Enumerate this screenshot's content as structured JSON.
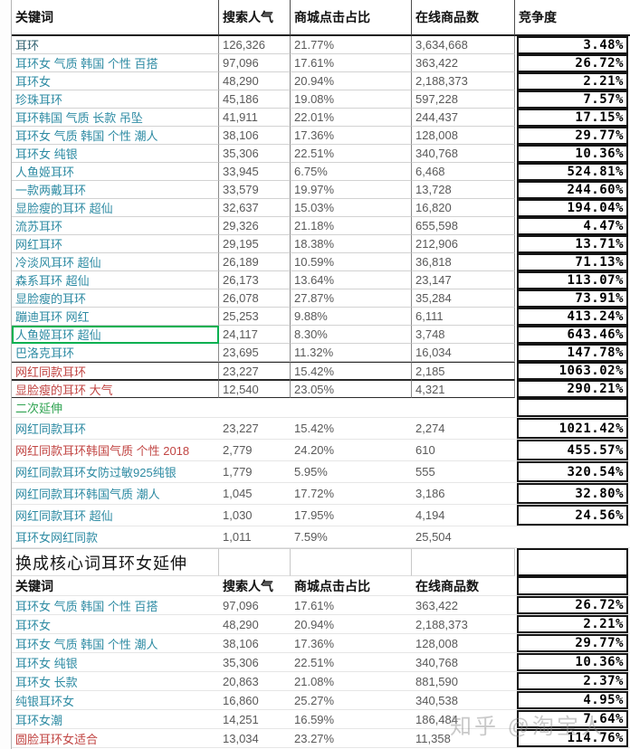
{
  "watermark": "知乎 @淘宝人",
  "colors": {
    "keyword_teal": "#2e8ba3",
    "keyword_red": "#c14543",
    "keyword_green": "#2fa351",
    "number_gray": "#595959",
    "competition_black": "#000000",
    "green_highlight_border": "#00b050"
  },
  "headers": [
    "关键词",
    "搜索人气",
    "商城点击占比",
    "在线商品数",
    "竞争度"
  ],
  "headers2": [
    "关键词",
    "搜索人气",
    "商城点击占比",
    "在线商品数",
    ""
  ],
  "section2_label": "二次延伸",
  "section3_title": "换成核心词耳环女延伸",
  "rows": [
    {
      "type": "header"
    },
    {
      "type": "data",
      "sec": 1,
      "kw": "耳环",
      "c": "d",
      "s": "126,326",
      "m": "21.77%",
      "o": "3,634,668",
      "p": "3.48%"
    },
    {
      "type": "data",
      "sec": 1,
      "kw": "耳环女 气质 韩国 个性 百搭",
      "c": "t",
      "s": "97,096",
      "m": "17.61%",
      "o": "363,422",
      "p": "26.72%"
    },
    {
      "type": "data",
      "sec": 1,
      "kw": "耳环女",
      "c": "t",
      "s": "48,290",
      "m": "20.94%",
      "o": "2,188,373",
      "p": "2.21%"
    },
    {
      "type": "data",
      "sec": 1,
      "kw": "珍珠耳环",
      "c": "t",
      "s": "45,186",
      "m": "19.08%",
      "o": "597,228",
      "p": "7.57%"
    },
    {
      "type": "data",
      "sec": 1,
      "kw": "耳环韩国 气质 长款 吊坠",
      "c": "t",
      "s": "41,911",
      "m": "22.01%",
      "o": "244,437",
      "p": "17.15%"
    },
    {
      "type": "data",
      "sec": 1,
      "kw": "耳环女 气质 韩国 个性 潮人",
      "c": "t",
      "s": "38,106",
      "m": "17.36%",
      "o": "128,008",
      "p": "29.77%"
    },
    {
      "type": "data",
      "sec": 1,
      "kw": "耳环女 纯银",
      "c": "t",
      "s": "35,306",
      "m": "22.51%",
      "o": "340,768",
      "p": "10.36%"
    },
    {
      "type": "data",
      "sec": 1,
      "kw": "人鱼姬耳环",
      "c": "t",
      "s": "33,945",
      "m": "6.75%",
      "o": "6,468",
      "p": "524.81%"
    },
    {
      "type": "data",
      "sec": 1,
      "kw": "一款两戴耳环",
      "c": "t",
      "s": "33,579",
      "m": "19.97%",
      "o": "13,728",
      "p": "244.60%"
    },
    {
      "type": "data",
      "sec": 1,
      "kw": "显脸瘦的耳环 超仙",
      "c": "t",
      "s": "32,637",
      "m": "15.03%",
      "o": "16,820",
      "p": "194.04%"
    },
    {
      "type": "data",
      "sec": 1,
      "kw": "流苏耳环",
      "c": "t",
      "s": "29,326",
      "m": "21.18%",
      "o": "655,598",
      "p": "4.47%"
    },
    {
      "type": "data",
      "sec": 1,
      "kw": "网红耳环",
      "c": "t",
      "s": "29,195",
      "m": "18.38%",
      "o": "212,906",
      "p": "13.71%"
    },
    {
      "type": "data",
      "sec": 1,
      "kw": "冷淡风耳环 超仙",
      "c": "t",
      "s": "26,189",
      "m": "10.59%",
      "o": "36,818",
      "p": "71.13%"
    },
    {
      "type": "data",
      "sec": 1,
      "kw": "森系耳环 超仙",
      "c": "t",
      "s": "26,173",
      "m": "13.64%",
      "o": "23,147",
      "p": "113.07%"
    },
    {
      "type": "data",
      "sec": 1,
      "kw": "显脸瘦的耳环",
      "c": "t",
      "s": "26,078",
      "m": "27.87%",
      "o": "35,284",
      "p": "73.91%"
    },
    {
      "type": "data",
      "sec": 1,
      "kw": "蹦迪耳环 网红",
      "c": "t",
      "s": "25,253",
      "m": "9.88%",
      "o": "6,111",
      "p": "413.24%"
    },
    {
      "type": "data",
      "sec": 1,
      "kw": "人鱼姬耳环 超仙",
      "c": "t",
      "green_box": true,
      "s": "24,117",
      "m": "8.30%",
      "o": "3,748",
      "p": "643.46%"
    },
    {
      "type": "data",
      "sec": 1,
      "kw": "巴洛克耳环",
      "c": "t",
      "s": "23,695",
      "m": "11.32%",
      "o": "16,034",
      "p": "147.78%"
    },
    {
      "type": "data",
      "sec": 1,
      "kw": "网红同款耳环",
      "c": "r",
      "heavy": true,
      "s": "23,227",
      "m": "15.42%",
      "o": "2,185",
      "p": "1063.02%"
    },
    {
      "type": "data",
      "sec": 1,
      "kw": "显脸瘦的耳环 大气",
      "c": "r",
      "heavy": true,
      "s": "12,540",
      "m": "23.05%",
      "o": "4,321",
      "p": "290.21%"
    },
    {
      "type": "section",
      "kw": "二次延伸",
      "c": "g",
      "pbox": true
    },
    {
      "type": "data",
      "sec": 2,
      "kw": "网红同款耳环",
      "c": "t",
      "s": "23,227",
      "m": "15.42%",
      "o": "2,274",
      "p": "1021.42%"
    },
    {
      "type": "data",
      "sec": 2,
      "kw": "网红同款耳环韩国气质 个性 2018",
      "c": "r",
      "s": "2,779",
      "m": "24.20%",
      "o": "610",
      "p": "455.57%"
    },
    {
      "type": "data",
      "sec": 2,
      "kw": "网红同款耳环女防过敏925纯银",
      "c": "t",
      "s": "1,779",
      "m": "5.95%",
      "o": "555",
      "p": "320.54%"
    },
    {
      "type": "data",
      "sec": 2,
      "kw": "网红同款耳环韩国气质 潮人",
      "c": "t",
      "s": "1,045",
      "m": "17.72%",
      "o": "3,186",
      "p": "32.80%"
    },
    {
      "type": "data",
      "sec": 2,
      "kw": "网红同款耳环 超仙",
      "c": "t",
      "s": "1,030",
      "m": "17.95%",
      "o": "4,194",
      "p": "24.56%"
    },
    {
      "type": "data",
      "sec": 2,
      "kw": "耳环女网红同款",
      "c": "t",
      "s": "1,011",
      "m": "7.59%",
      "o": "25,504",
      "p": ""
    },
    {
      "type": "title",
      "kw": "换成核心词耳环女延伸",
      "c": "k",
      "pbox": true
    },
    {
      "type": "header2",
      "pbox": true
    },
    {
      "type": "data",
      "sec": 3,
      "kw": "耳环女 气质 韩国 个性 百搭",
      "c": "t",
      "s": "97,096",
      "m": "17.61%",
      "o": "363,422",
      "p": "26.72%"
    },
    {
      "type": "data",
      "sec": 3,
      "kw": "耳环女",
      "c": "t",
      "s": "48,290",
      "m": "20.94%",
      "o": "2,188,373",
      "p": "2.21%"
    },
    {
      "type": "data",
      "sec": 3,
      "kw": "耳环女 气质 韩国 个性 潮人",
      "c": "t",
      "s": "38,106",
      "m": "17.36%",
      "o": "128,008",
      "p": "29.77%"
    },
    {
      "type": "data",
      "sec": 3,
      "kw": "耳环女 纯银",
      "c": "t",
      "s": "35,306",
      "m": "22.51%",
      "o": "340,768",
      "p": "10.36%"
    },
    {
      "type": "data",
      "sec": 3,
      "kw": "耳环女 长款",
      "c": "t",
      "s": "20,863",
      "m": "21.08%",
      "o": "881,590",
      "p": "2.37%"
    },
    {
      "type": "data",
      "sec": 3,
      "kw": "纯银耳环女",
      "c": "t",
      "s": "16,860",
      "m": "25.27%",
      "o": "340,538",
      "p": "4.95%"
    },
    {
      "type": "data",
      "sec": 3,
      "kw": "耳环女潮",
      "c": "t",
      "s": "14,251",
      "m": "16.59%",
      "o": "186,484",
      "p": "7.64%"
    },
    {
      "type": "data",
      "sec": 3,
      "kw": "圆脸耳环女适合",
      "c": "r",
      "s": "13,034",
      "m": "23.27%",
      "o": "11,358",
      "p": "114.76%"
    }
  ]
}
